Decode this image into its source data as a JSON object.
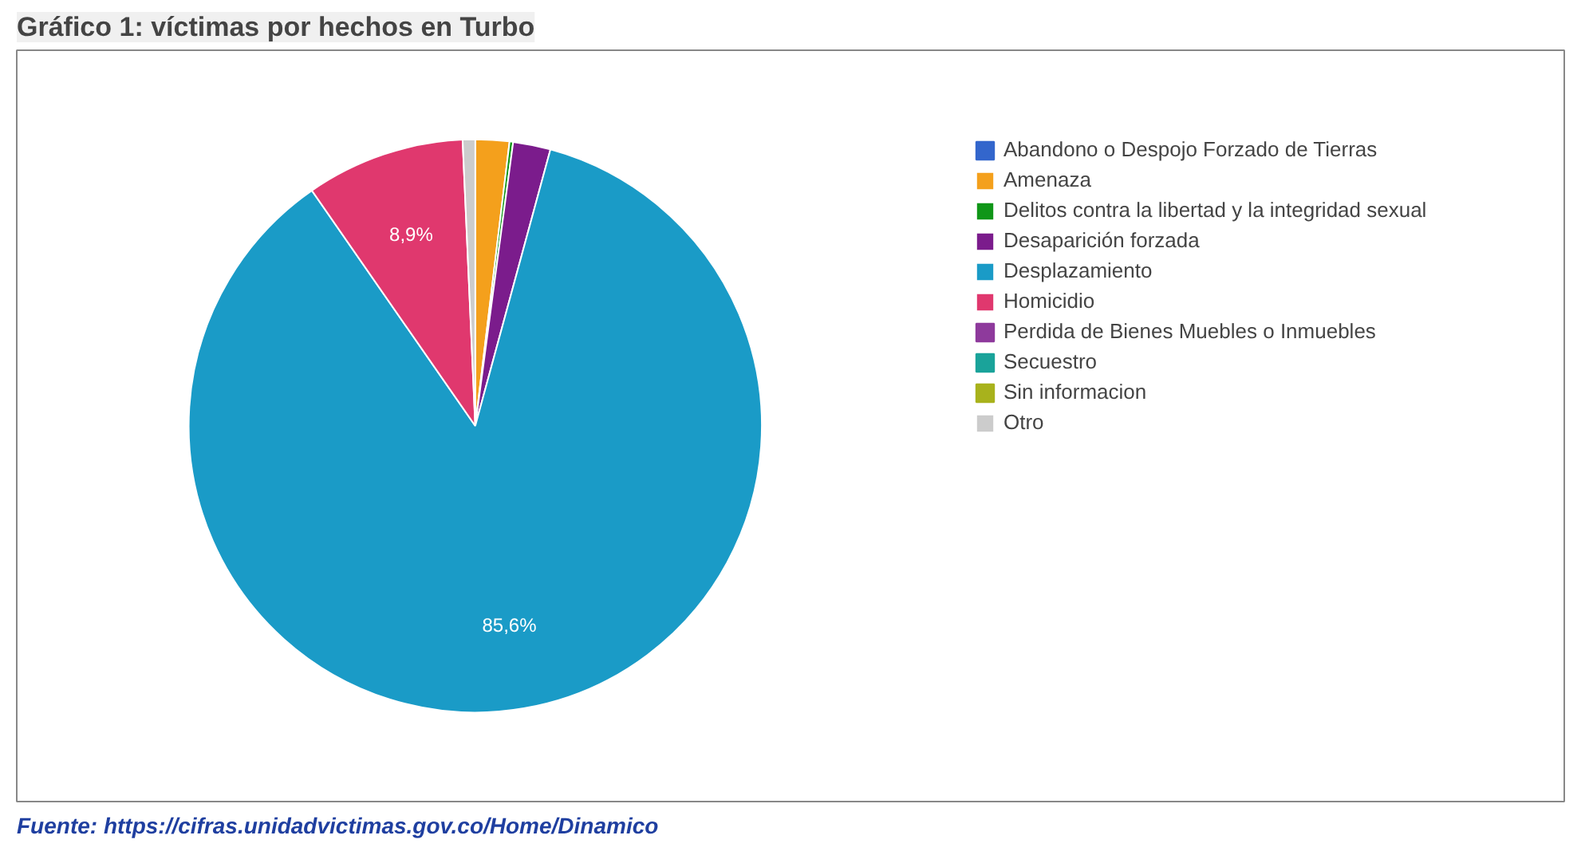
{
  "chart_data": {
    "type": "pie",
    "title": "Gráfico 1: víctimas por hechos en Turbo",
    "categories": [
      "Abandono o Despojo Forzado de Tierras",
      "Amenaza",
      "Delitos contra la libertad y la integridad sexual",
      "Desaparición forzada",
      "Desplazamiento",
      "Homicidio",
      "Perdida de Bienes Muebles o Inmuebles",
      "Secuestro",
      "Sin informacion",
      "Otro"
    ],
    "values": [
      null,
      1.9,
      0.2,
      2.1,
      85.6,
      8.9,
      null,
      null,
      null,
      0.7
    ],
    "value_labels": [
      null,
      null,
      null,
      null,
      "85,6%",
      "8,9%",
      null,
      null,
      null,
      null
    ],
    "colors": [
      "#3366cc",
      "#f4a01c",
      "#109618",
      "#7b1c8c",
      "#1a9bc7",
      "#e0386e",
      "#8e3a9c",
      "#1aa39a",
      "#a8b21c",
      "#cccccc"
    ],
    "legend": "right",
    "annotations": [
      "Fuente: https://cifras.unidadvictimas.gov.co/Home/Dinamico"
    ]
  }
}
